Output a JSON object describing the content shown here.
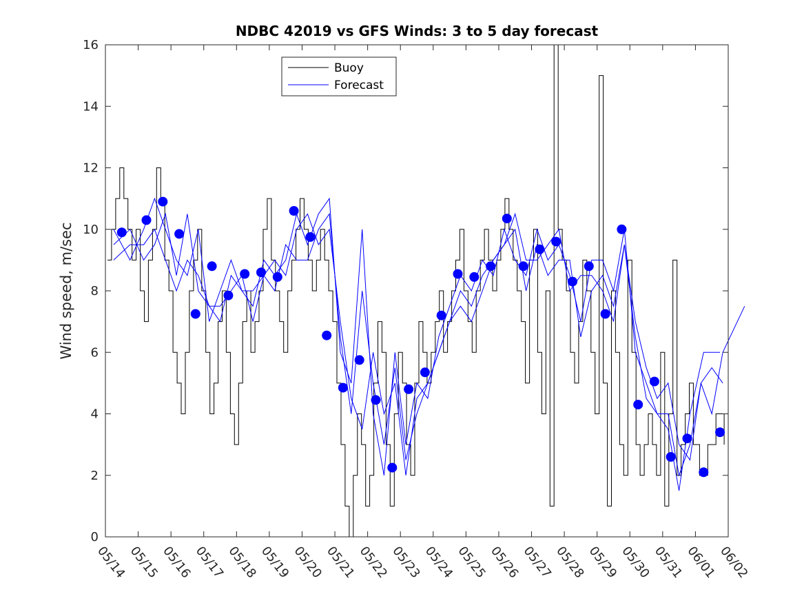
{
  "chart_data": {
    "type": "line",
    "title": "NDBC 42019 vs GFS Winds: 3 to 5 day forecast",
    "xlabel": "",
    "ylabel": "Wind speed, m/sec",
    "xlim": [
      "05/14",
      "06/02"
    ],
    "ylim": [
      0,
      16
    ],
    "x_tick_labels": [
      "05/14",
      "05/15",
      "05/16",
      "05/17",
      "05/18",
      "05/19",
      "05/20",
      "05/21",
      "05/22",
      "05/23",
      "05/24",
      "05/25",
      "05/26",
      "05/27",
      "05/28",
      "05/29",
      "05/30",
      "05/31",
      "06/01",
      "06/02"
    ],
    "y_tick_labels": [
      "0",
      "2",
      "4",
      "6",
      "8",
      "10",
      "12",
      "14",
      "16"
    ],
    "legend": {
      "position": "top-left",
      "entries": [
        "Buoy",
        "Forecast"
      ]
    },
    "colors": {
      "buoy": "#000000",
      "forecast": "#0000ff",
      "markers": "#0000ff"
    },
    "series": [
      {
        "name": "Buoy",
        "color": "#000000",
        "x": [
          "05/14",
          "05/14",
          "05/14",
          "05/14",
          "05/14",
          "05/14",
          "05/14",
          "05/14",
          "05/15",
          "05/15",
          "05/15",
          "05/15",
          "05/15",
          "05/15",
          "05/15",
          "05/15",
          "05/16",
          "05/16",
          "05/16",
          "05/16",
          "05/16",
          "05/16",
          "05/16",
          "05/16",
          "05/17",
          "05/17",
          "05/17",
          "05/17",
          "05/17",
          "05/17",
          "05/17",
          "05/17",
          "05/18",
          "05/18",
          "05/18",
          "05/18",
          "05/18",
          "05/18",
          "05/18",
          "05/18",
          "05/19",
          "05/19",
          "05/19",
          "05/19",
          "05/19",
          "05/19",
          "05/19",
          "05/19",
          "05/20",
          "05/20",
          "05/20",
          "05/20",
          "05/20",
          "05/20",
          "05/20",
          "05/20",
          "05/21",
          "05/21",
          "05/21",
          "05/21",
          "05/21",
          "05/21",
          "05/21",
          "05/21",
          "05/22",
          "05/22",
          "05/22",
          "05/22",
          "05/22",
          "05/22",
          "05/22",
          "05/22",
          "05/23",
          "05/23",
          "05/23",
          "05/23",
          "05/23",
          "05/23",
          "05/23",
          "05/23",
          "05/24",
          "05/24",
          "05/24",
          "05/24",
          "05/24",
          "05/24",
          "05/24",
          "05/24",
          "05/25",
          "05/25",
          "05/25",
          "05/25",
          "05/25",
          "05/25",
          "05/25",
          "05/25",
          "05/26",
          "05/26",
          "05/26",
          "05/26",
          "05/26",
          "05/26",
          "05/26",
          "05/26",
          "05/27",
          "05/27",
          "05/27",
          "05/27",
          "05/27",
          "05/27",
          "05/27",
          "05/27",
          "05/28",
          "05/28",
          "05/28",
          "05/28",
          "05/28",
          "05/28",
          "05/28",
          "05/28",
          "05/29",
          "05/29",
          "05/29",
          "05/29",
          "05/29",
          "05/29",
          "05/29",
          "05/29",
          "05/30",
          "05/30",
          "05/30",
          "05/30",
          "05/30",
          "05/30",
          "05/30",
          "05/30",
          "05/31",
          "05/31",
          "05/31",
          "05/31",
          "05/31",
          "05/31",
          "05/31",
          "05/31",
          "06/01",
          "06/01",
          "06/01",
          "06/01"
        ],
        "values": [
          9,
          10,
          11,
          12,
          11,
          10,
          9,
          10,
          8,
          7,
          9,
          10,
          12,
          11,
          9,
          8,
          6,
          5,
          4,
          6,
          8,
          9,
          10,
          8,
          6,
          4,
          5,
          7,
          8,
          6,
          4,
          3,
          5,
          7,
          8,
          6,
          7,
          8,
          10,
          11,
          9,
          8,
          7,
          6,
          8,
          9,
          10,
          11,
          10,
          9,
          8,
          9,
          10,
          9,
          8,
          7,
          5,
          3,
          1,
          0,
          2,
          4,
          3,
          1,
          2,
          5,
          7,
          6,
          3,
          1,
          4,
          6,
          5,
          3,
          2,
          5,
          7,
          6,
          5,
          6,
          7,
          8,
          6,
          7,
          8,
          9,
          10,
          8,
          7,
          6,
          8,
          9,
          10,
          9,
          8,
          9,
          10,
          11,
          10,
          9,
          8,
          7,
          5,
          9,
          10,
          6,
          4,
          8,
          1,
          16,
          10,
          9,
          8,
          6,
          5,
          7,
          9,
          8,
          6,
          4,
          15,
          5,
          1,
          8,
          6,
          3,
          2,
          9,
          6,
          3,
          2,
          3,
          4,
          3,
          2,
          6,
          1,
          4,
          9,
          2,
          3,
          4,
          5,
          3,
          2,
          3,
          4,
          3
        ]
      },
      {
        "name": "Forecast",
        "color": "#0000ff",
        "x": [
          "05/14",
          "05/14",
          "05/15",
          "05/15",
          "05/15",
          "05/16",
          "05/16",
          "05/16",
          "05/17",
          "05/17",
          "05/17",
          "05/18",
          "05/18",
          "05/18",
          "05/19",
          "05/19",
          "05/19",
          "05/20",
          "05/20",
          "05/20",
          "05/21",
          "05/21",
          "05/21",
          "05/22",
          "05/22",
          "05/22",
          "05/23",
          "05/23",
          "05/23",
          "05/24",
          "05/24",
          "05/24",
          "05/25",
          "05/25",
          "05/25",
          "05/26",
          "05/26",
          "05/26",
          "05/27",
          "05/27",
          "05/27",
          "05/28",
          "05/28",
          "05/28",
          "05/29",
          "05/29",
          "05/29",
          "05/30",
          "05/30",
          "05/30",
          "05/31",
          "05/31",
          "05/31",
          "06/01",
          "06/01",
          "06/01",
          "06/02"
        ],
        "values": [
          9.5,
          10,
          9,
          9.5,
          10.5,
          8.5,
          10.5,
          8,
          7.5,
          7,
          8.5,
          8,
          8,
          8.5,
          9,
          8.5,
          10,
          10.5,
          9.5,
          10,
          7,
          4.5,
          3.5,
          6,
          4,
          5,
          2,
          4.5,
          5,
          6,
          7,
          8,
          7.5,
          8.5,
          9,
          9.5,
          10.5,
          9,
          9,
          9.5,
          10,
          8,
          8.5,
          8.5,
          8,
          7,
          9.5,
          7,
          5.5,
          4.5,
          5,
          3,
          2.5,
          5,
          4,
          6,
          7.5
        ]
      },
      {
        "name": "",
        "color": "#0000ff",
        "x": [
          "05/14",
          "05/14",
          "05/15",
          "05/15",
          "05/15",
          "05/16",
          "05/16",
          "05/16",
          "05/17",
          "05/17",
          "05/17",
          "05/18",
          "05/18",
          "05/18",
          "05/19",
          "05/19",
          "05/19",
          "05/20",
          "05/20",
          "05/20",
          "05/21",
          "05/21",
          "05/21",
          "05/22",
          "05/22",
          "05/22",
          "05/23",
          "05/23",
          "05/23",
          "05/24",
          "05/24",
          "05/24",
          "05/25",
          "05/25",
          "05/25",
          "05/26",
          "05/26",
          "05/26",
          "05/27",
          "05/27",
          "05/27",
          "05/28",
          "05/28",
          "05/28",
          "05/29",
          "05/29",
          "05/29",
          "05/30",
          "05/30",
          "05/30",
          "05/31",
          "05/31",
          "05/31",
          "06/01",
          "06/01",
          "06/01"
        ],
        "values": [
          10,
          9,
          10,
          11,
          10,
          9,
          8.5,
          10,
          7,
          8,
          9,
          8,
          7.5,
          9,
          8.5,
          9,
          10.5,
          9.5,
          10.5,
          11,
          6,
          5,
          10,
          4,
          2,
          6,
          3,
          5,
          4.5,
          6.5,
          7.5,
          8.5,
          8,
          9,
          8.5,
          10,
          9,
          8.5,
          10,
          9,
          9.5,
          8.5,
          7,
          9,
          9,
          8,
          10,
          6,
          5,
          4,
          4,
          2,
          3,
          5,
          5.5,
          5
        ]
      },
      {
        "name": "",
        "color": "#0000ff",
        "x": [
          "05/14",
          "05/14",
          "05/15",
          "05/15",
          "05/15",
          "05/16",
          "05/16",
          "05/16",
          "05/17",
          "05/17",
          "05/17",
          "05/18",
          "05/18",
          "05/18",
          "05/19",
          "05/19",
          "05/19",
          "05/20",
          "05/20",
          "05/20",
          "05/21",
          "05/21",
          "05/21",
          "05/22",
          "05/22",
          "05/22",
          "05/23",
          "05/23",
          "05/23",
          "05/24",
          "05/24",
          "05/24",
          "05/25",
          "05/25",
          "05/25",
          "05/26",
          "05/26",
          "05/26",
          "05/27",
          "05/27",
          "05/27",
          "05/28",
          "05/28",
          "05/28",
          "05/29",
          "05/29",
          "05/29",
          "05/30",
          "05/30",
          "05/30",
          "05/31",
          "05/31",
          "05/31",
          "06/01",
          "06/01"
        ],
        "values": [
          9,
          9.5,
          9.5,
          10,
          9,
          8,
          9,
          8.5,
          7.5,
          7.5,
          8,
          8.5,
          7,
          8.5,
          8,
          9.5,
          9,
          9,
          10,
          10.5,
          6.5,
          4,
          8,
          5,
          3,
          5.5,
          2.5,
          4,
          5,
          6,
          7,
          7.5,
          7,
          8,
          9,
          9.5,
          10,
          8,
          9.5,
          8.5,
          9,
          9,
          6.5,
          8,
          8.5,
          7.5,
          9.5,
          6.5,
          4.5,
          4,
          3.5,
          1.5,
          4,
          6,
          6
        ]
      }
    ],
    "markers": {
      "x": [
        "05/14",
        "05/15",
        "05/15",
        "05/16",
        "05/16",
        "05/17",
        "05/17",
        "05/18",
        "05/18",
        "05/19",
        "05/19",
        "05/20",
        "05/20",
        "05/21",
        "05/21",
        "05/22",
        "05/22",
        "05/23",
        "05/23",
        "05/24",
        "05/24",
        "05/25",
        "05/25",
        "05/26",
        "05/26",
        "05/27",
        "05/27",
        "05/28",
        "05/28",
        "05/29",
        "05/29",
        "05/30",
        "05/30",
        "05/31",
        "05/31",
        "06/01",
        "06/01"
      ],
      "values": [
        9.9,
        10.3,
        10.9,
        9.85,
        7.25,
        8.8,
        7.85,
        8.55,
        8.6,
        8.45,
        10.6,
        9.75,
        6.55,
        4.85,
        5.75,
        4.45,
        2.25,
        4.8,
        5.35,
        7.2,
        8.55,
        8.45,
        8.8,
        10.35,
        8.8,
        9.35,
        9.6,
        8.3,
        8.8,
        7.25,
        10.0,
        4.3,
        5.05,
        2.6,
        3.2,
        2.1,
        3.4
      ]
    }
  }
}
